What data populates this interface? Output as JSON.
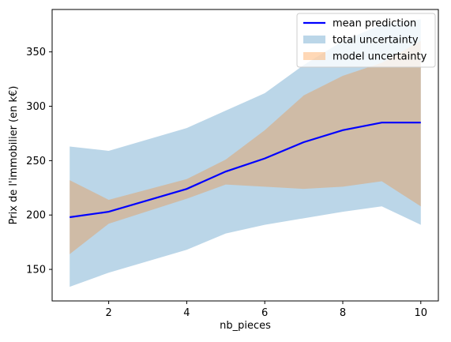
{
  "chart_data": {
    "type": "line",
    "title": "",
    "xlabel": "nb_pieces",
    "ylabel": "Prix de l'immobilier (en k€)",
    "xlim": [
      0.55,
      10.45
    ],
    "ylim": [
      121,
      389
    ],
    "xticks": [
      2,
      4,
      6,
      8,
      10
    ],
    "yticks": [
      150,
      200,
      250,
      300,
      350
    ],
    "grid": false,
    "legend_position": "top-right",
    "x": [
      1,
      2,
      4,
      5,
      6,
      7,
      8,
      9,
      10
    ],
    "series": [
      {
        "name": "mean prediction",
        "kind": "line",
        "color": "#0000ff",
        "values": [
          198,
          203,
          224,
          240,
          252,
          267,
          278,
          285,
          285
        ]
      },
      {
        "name": "total uncertainty",
        "kind": "band",
        "color": "#1f77b4",
        "opacity": 0.3,
        "lower": [
          134,
          147,
          168,
          183,
          191,
          197,
          203,
          208,
          191
        ],
        "upper": [
          263,
          259,
          280,
          296,
          312,
          338,
          360,
          375,
          380
        ]
      },
      {
        "name": "model uncertainty",
        "kind": "band",
        "color": "#ff7f0e",
        "opacity": 0.3,
        "lower": [
          164,
          192,
          215,
          228,
          226,
          224,
          226,
          231,
          208
        ],
        "upper": [
          232,
          214,
          233,
          251,
          278,
          310,
          328,
          340,
          360
        ]
      }
    ]
  }
}
